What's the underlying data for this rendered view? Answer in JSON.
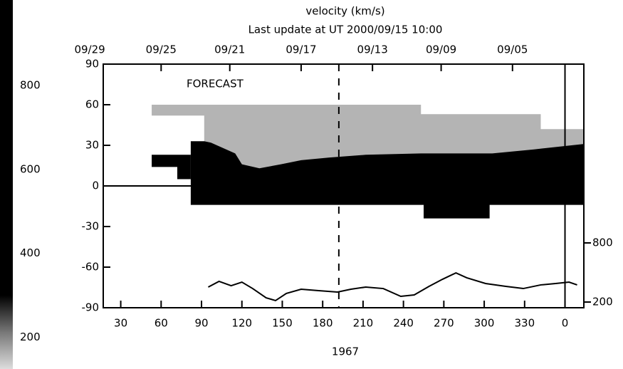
{
  "chart_data": {
    "type": "synoptic-map",
    "title": "velocity (km/s)",
    "subtitle": "Last update at UT 2000/09/15 10:00",
    "annotation": "FORECAST",
    "xlabel": "1967",
    "xlim": [
      17,
      374
    ],
    "xticks": [
      30,
      60,
      90,
      120,
      150,
      180,
      210,
      240,
      270,
      300,
      330,
      {
        "value": 360,
        "label": "0"
      }
    ],
    "top_ticks": [
      {
        "value": 7,
        "label": "09/29"
      },
      {
        "value": 60,
        "label": "09/25"
      },
      {
        "value": 111,
        "label": "09/21"
      },
      {
        "value": 164,
        "label": "09/17"
      },
      {
        "value": 217,
        "label": "09/13"
      },
      {
        "value": 268,
        "label": "09/09"
      },
      {
        "value": 321,
        "label": "09/05"
      }
    ],
    "ylim": [
      -90,
      90
    ],
    "yticks": [
      -90,
      -60,
      -30,
      0,
      30,
      60,
      90
    ],
    "boundary_x": 360,
    "current_x": 192,
    "colorbar": {
      "lim": [
        124,
        1004
      ],
      "ticks": [
        800,
        600,
        400,
        200
      ]
    },
    "regions": [
      {
        "value": 300,
        "color": "#b4b4b4",
        "points": [
          [
            53,
            60
          ],
          [
            253,
            60
          ],
          [
            253,
            53
          ],
          [
            342,
            53
          ],
          [
            342,
            42
          ],
          [
            374,
            42
          ],
          [
            374,
            10
          ],
          [
            92,
            10
          ],
          [
            92,
            52
          ],
          [
            53,
            52
          ]
        ]
      },
      {
        "value": 650,
        "color": "#000000",
        "points": [
          [
            82,
            33
          ],
          [
            92,
            33
          ],
          [
            97,
            32
          ],
          [
            115,
            24
          ],
          [
            120,
            16
          ],
          [
            133,
            13
          ],
          [
            149,
            16
          ],
          [
            164,
            19
          ],
          [
            185,
            21
          ],
          [
            212,
            23
          ],
          [
            253,
            24
          ],
          [
            306,
            24
          ],
          [
            337,
            27
          ],
          [
            374,
            31
          ],
          [
            374,
            -14
          ],
          [
            304,
            -14
          ],
          [
            304,
            -24
          ],
          [
            255,
            -24
          ],
          [
            255,
            -14
          ],
          [
            82,
            -14
          ]
        ]
      },
      {
        "value": 650,
        "color": "#000000",
        "points": [
          [
            53,
            23
          ],
          [
            82,
            23
          ],
          [
            82,
            5
          ],
          [
            72,
            5
          ],
          [
            72,
            14
          ],
          [
            53,
            14
          ]
        ]
      }
    ],
    "series": [
      {
        "name": "velocity",
        "axis": "y2",
        "color": "#000000",
        "x": [
          95,
          103,
          112,
          120,
          128,
          138,
          145,
          153,
          164,
          177,
          191,
          201,
          212,
          225,
          238,
          248,
          259,
          269,
          279,
          287,
          301,
          316,
          329,
          342,
          353,
          363,
          369
        ],
        "values": [
          352,
          410,
          366,
          402,
          337,
          243,
          215,
          287,
          330,
          316,
          301,
          330,
          352,
          337,
          258,
          272,
          359,
          431,
          496,
          446,
          388,
          359,
          337,
          374,
          388,
          402,
          374
        ]
      }
    ],
    "y2lim": [
      200,
      800
    ],
    "y2ticks": [
      200,
      800
    ]
  }
}
